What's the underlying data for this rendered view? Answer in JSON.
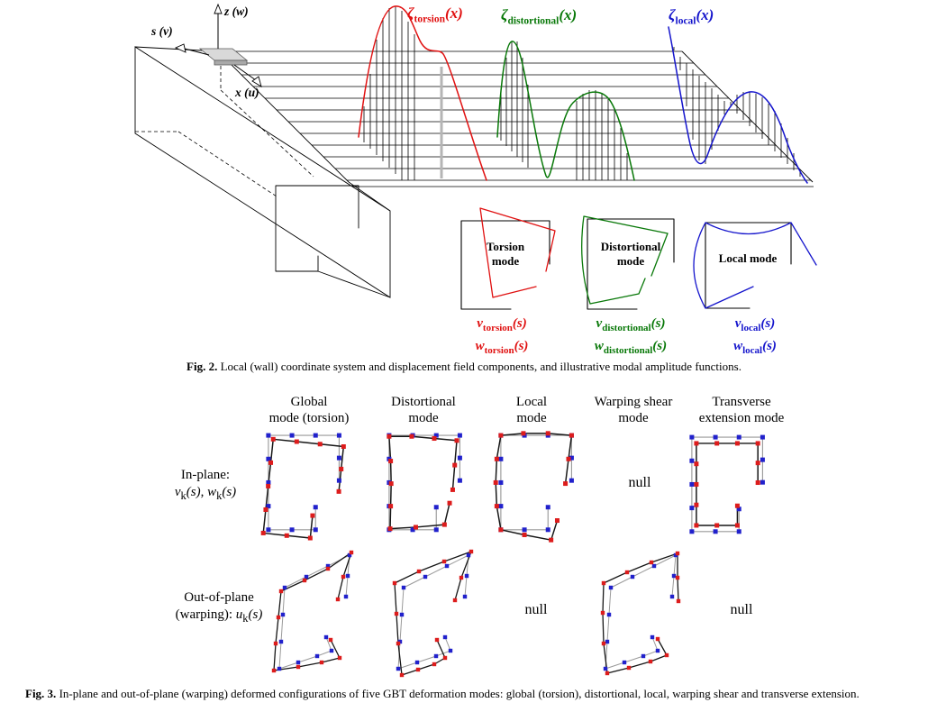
{
  "page": {
    "background": "#ffffff"
  },
  "fig2": {
    "axis_labels": {
      "z": "z (w)",
      "s": "s (v)",
      "x": "x (u)"
    },
    "amplitude_functions": [
      {
        "symbol": "ζ",
        "sub": "torsion",
        "arg": "(x)",
        "color": "#e01010"
      },
      {
        "symbol": "ζ",
        "sub": "distortional",
        "arg": "(x)",
        "color": "#087808"
      },
      {
        "symbol": "ζ",
        "sub": "local",
        "arg": "(x)",
        "color": "#1414cc"
      }
    ],
    "mode_insets": [
      {
        "title_line1": "Torsion",
        "title_line2": "mode",
        "color": "#e01010",
        "labels": [
          {
            "var": "v",
            "sub": "torsion",
            "arg": "(s)"
          },
          {
            "var": "w",
            "sub": "torsion",
            "arg": "(s)"
          }
        ]
      },
      {
        "title_line1": "Distortional",
        "title_line2": "mode",
        "color": "#087808",
        "labels": [
          {
            "var": "v",
            "sub": "distortional",
            "arg": "(s)"
          },
          {
            "var": "w",
            "sub": "distortional",
            "arg": "(s)"
          }
        ]
      },
      {
        "title_line1": "Local mode",
        "title_line2": "",
        "color": "#1414cc",
        "labels": [
          {
            "var": "v",
            "sub": "local",
            "arg": "(s)"
          },
          {
            "var": "w",
            "sub": "local",
            "arg": "(s)"
          }
        ]
      }
    ],
    "caption": {
      "label": "Fig. 2.",
      "text": "Local (wall) coordinate system and displacement field components, and illustrative modal amplitude functions."
    }
  },
  "fig3": {
    "column_headers": [
      {
        "line1": "Global",
        "line2": "mode (torsion)"
      },
      {
        "line1": "Distortional",
        "line2": "mode"
      },
      {
        "line1": "Local",
        "line2": "mode"
      },
      {
        "line1": "Warping shear",
        "line2": "mode"
      },
      {
        "line1": "Transverse",
        "line2": "extension mode"
      }
    ],
    "row_labels": [
      {
        "line1": "In-plane:",
        "var1": "v",
        "var2": "w",
        "sub": "k",
        "arg": "(s)",
        "sep": ", "
      },
      {
        "line1": "Out-of-plane",
        "pre": "(warping): ",
        "var1": "u",
        "sub": "k",
        "arg": "(s)"
      }
    ],
    "null_label": "null",
    "legend_colors": {
      "undeformed_nodes": "#2121cc",
      "deformed_nodes": "#dd1c1c",
      "undeformed_line": "#9a9a9a",
      "deformed_line": "#161616"
    },
    "caption": {
      "label": "Fig. 3.",
      "text": "In-plane and out-of-plane (warping) deformed configurations of five GBT deformation modes: global (torsion), distortional, local, warping shear and transverse extension."
    }
  }
}
